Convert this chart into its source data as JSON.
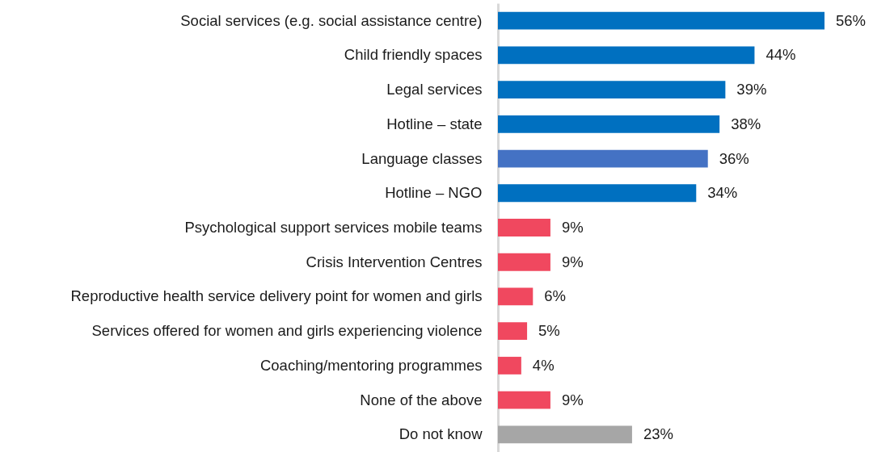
{
  "chart_data": {
    "type": "bar",
    "orientation": "horizontal",
    "categories": [
      "Social services (e.g. social assistance centre)",
      "Child friendly spaces",
      "Legal services",
      "Hotline – state",
      "Language classes",
      "Hotline – NGO",
      "Psychological support services mobile teams",
      "Crisis Intervention Centres",
      "Reproductive health service delivery point for women and girls",
      "Services offered for women and girls experiencing violence",
      "Coaching/mentoring programmes",
      "None of the above",
      "Do not know"
    ],
    "values": [
      56,
      44,
      39,
      38,
      36,
      34,
      9,
      9,
      6,
      5,
      4,
      9,
      23
    ],
    "value_labels": [
      "56%",
      "44%",
      "39%",
      "38%",
      "36%",
      "34%",
      "9%",
      "9%",
      "6%",
      "5%",
      "4%",
      "9%",
      "23%"
    ],
    "colors": [
      "#0070c0",
      "#0070c0",
      "#0070c0",
      "#0070c0",
      "#4472c4",
      "#0070c0",
      "#f0485f",
      "#f0485f",
      "#f0485f",
      "#f0485f",
      "#f0485f",
      "#f0485f",
      "#a6a6a6"
    ]
  }
}
